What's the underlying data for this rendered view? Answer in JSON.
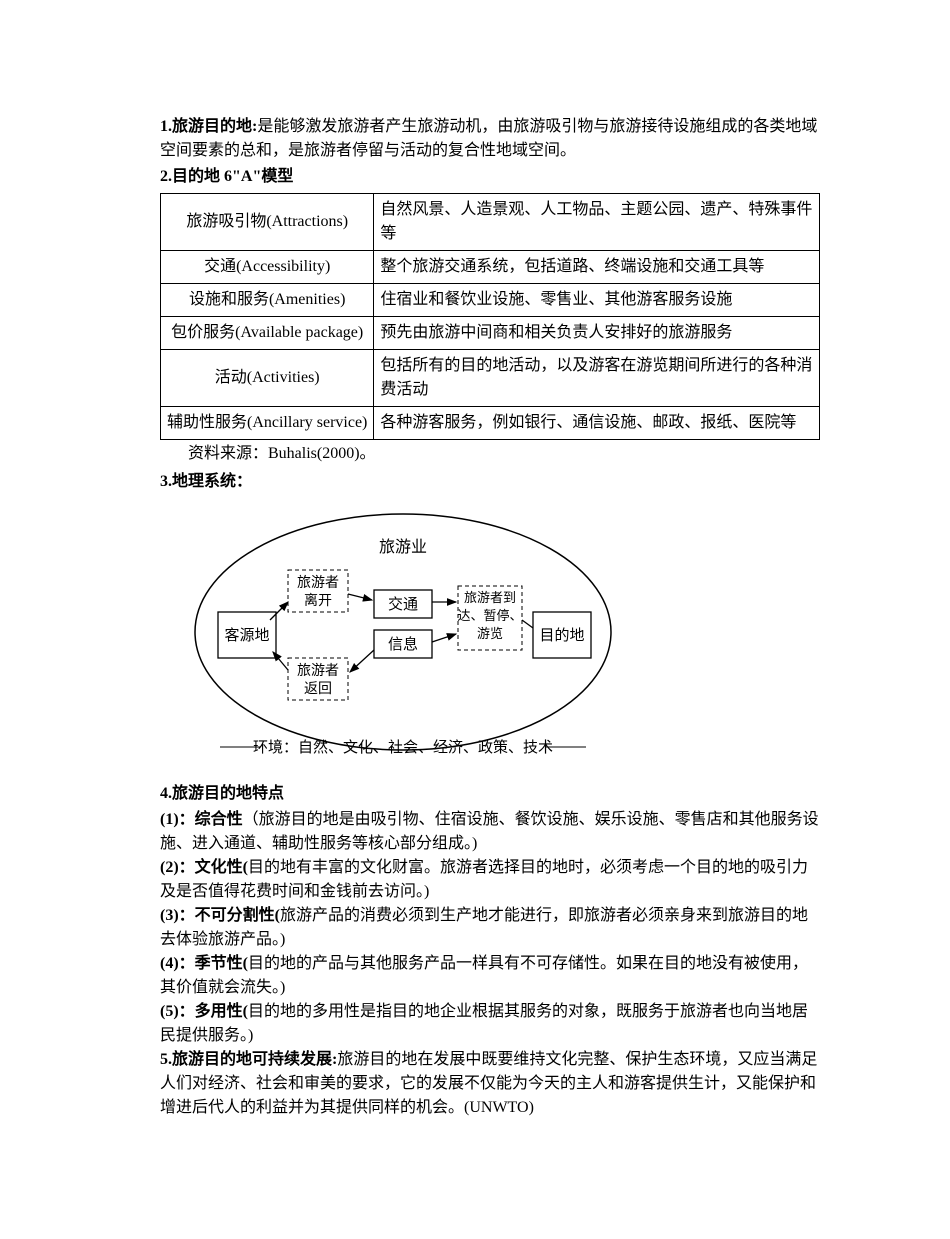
{
  "def1_prefix": "1.旅游目的地:",
  "def1_body": "是能够激发旅游者产生旅游动机，由旅游吸引物与旅游接待设施组成的各类地域空间要素的总和，是旅游者停留与活动的复合性地域空间。",
  "def2": "2.目的地 6\"A\"模型",
  "table": {
    "rows": [
      {
        "label": "旅游吸引物(Attractions)",
        "desc": "自然风景、人造景观、人工物品、主题公园、遗产、特殊事件等"
      },
      {
        "label": "交通(Accessibility)",
        "desc": "整个旅游交通系统，包括道路、终端设施和交通工具等"
      },
      {
        "label": "设施和服务(Amenities)",
        "desc": "住宿业和餐饮业设施、零售业、其他游客服务设施"
      },
      {
        "label": "包价服务(Available package)",
        "desc": "预先由旅游中间商和相关负责人安排好的旅游服务"
      },
      {
        "label": "活动(Activities)",
        "desc": "包括所有的目的地活动，以及游客在游览期间所进行的各种消费活动"
      },
      {
        "label": "辅助性服务(Ancillary service)",
        "desc": "各种游客服务，例如银行、通信设施、邮政、报纸、医院等"
      }
    ]
  },
  "source": "资料来源：Buhalis(2000)。",
  "def3": "3.地理系统：",
  "diagram": {
    "tourism": "旅游业",
    "origin": "客源地",
    "destination": "目的地",
    "depart": "旅游者\n离开",
    "return": "旅游者\n返回",
    "transport": "交通",
    "info": "信息",
    "arrive": "旅游者到达、暂停、游览",
    "env": "环境：自然、文化、社会、经济、政策、技术"
  },
  "def4": "4.旅游目的地特点",
  "feat1_a": "(1)：综合性",
  "feat1_b": "（旅游目的地是由吸引物、住宿设施、餐饮设施、娱乐设施、零售店和其他服务设施、进入通道、辅助性服务等核心部分组成。)",
  "feat2_a": "(2)：文化性(",
  "feat2_b": "目的地有丰富的文化财富。旅游者选择目的地时，必须考虑一个目的地的吸引力及是否值得花费时间和金钱前去访问。)",
  "feat3_a": "(3)：不可分割性(",
  "feat3_b": "旅游产品的消费必须到生产地才能进行，即旅游者必须亲身来到旅游目的地去体验旅游产品。)",
  "feat4_a": "(4)：季节性(",
  "feat4_b": "目的地的产品与其他服务产品一样具有不可存储性。如果在目的地没有被使用，其价值就会流失。)",
  "feat5_a": "(5)：多用性(",
  "feat5_b": "目的地的多用性是指目的地企业根据其服务的对象，既服务于旅游者也向当地居民提供服务。)",
  "def5_a": "5.旅游目的地可持续发展:",
  "def5_b": "旅游目的地在发展中既要维持文化完整、保护生态环境，又应当满足人们对经济、社会和审美的要求，它的发展不仅能为今天的主人和游客提供生计，又能保护和增进后代人的利益并为其提供同样的机会。(UNWTO)"
}
